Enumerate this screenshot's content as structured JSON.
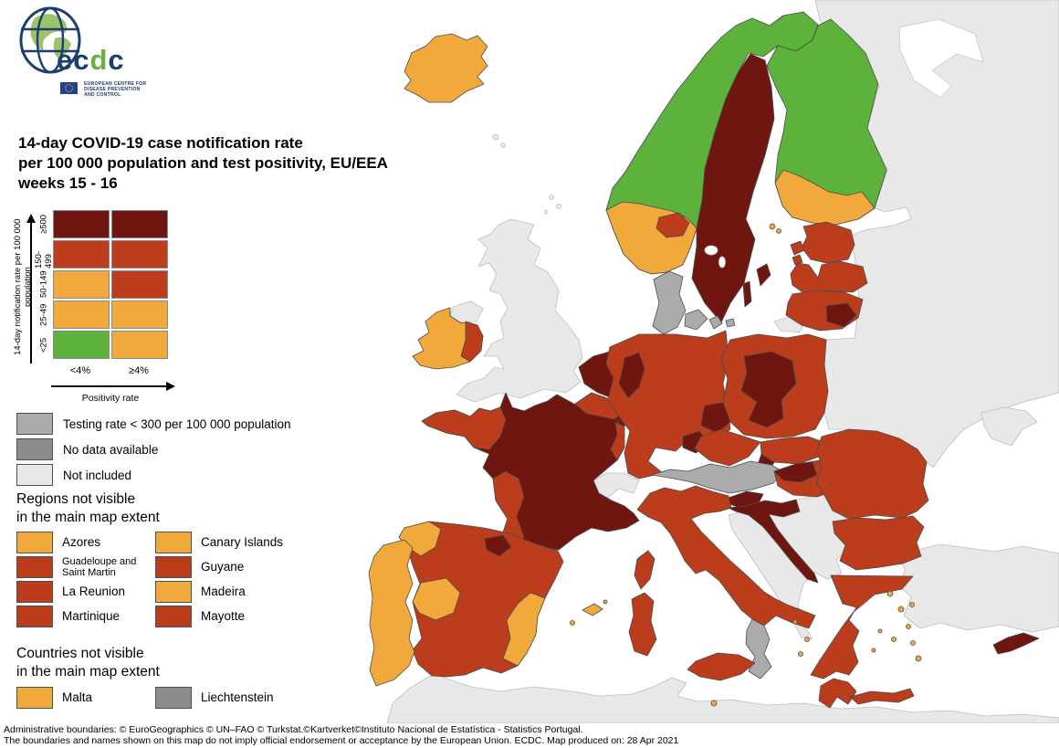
{
  "logo": {
    "wm1": "ec",
    "wm2": "d",
    "wm3": "c",
    "caption_l1": "EUROPEAN CENTRE FOR",
    "caption_l2": "DISEASE PREVENTION",
    "caption_l3": "AND CONTROL"
  },
  "title": {
    "line1": "14-day COVID-19 case notification rate",
    "line2": "per 100 000 population and test positivity, EU/EEA",
    "line3": "weeks 15 - 16"
  },
  "matrix_legend": {
    "y_axis_label": "14-day notification rate per 100 000 population",
    "x_axis_label": "Positivity rate",
    "columns": [
      "<4%",
      "≥4%"
    ],
    "rows": [
      {
        "label": "≥500",
        "cells": [
          "dark_red",
          "dark_red"
        ]
      },
      {
        "label": "150-499",
        "cells": [
          "red",
          "red"
        ]
      },
      {
        "label": "50-149",
        "cells": [
          "orange",
          "red"
        ]
      },
      {
        "label": "25-49",
        "cells": [
          "orange",
          "orange"
        ]
      },
      {
        "label": "<25",
        "cells": [
          "green",
          "orange"
        ]
      }
    ]
  },
  "status_legend": [
    {
      "label": "Testing rate < 300 per 100 000 population",
      "category": "testing_low"
    },
    {
      "label": "No data available",
      "category": "no_data"
    },
    {
      "label": "Not included",
      "category": "not_included"
    }
  ],
  "sections": {
    "regions": {
      "h1": "Regions not visible",
      "h2": "in the main map extent",
      "items": [
        {
          "name": "Azores",
          "category": "orange"
        },
        {
          "name": "Canary Islands",
          "category": "orange"
        },
        {
          "name": "Guadeloupe and Saint Martin",
          "category": "red"
        },
        {
          "name": "Guyane",
          "category": "red"
        },
        {
          "name": "La Reunion",
          "category": "red"
        },
        {
          "name": "Madeira",
          "category": "orange"
        },
        {
          "name": "Martinique",
          "category": "red"
        },
        {
          "name": "Mayotte",
          "category": "red"
        }
      ]
    },
    "countries": {
      "h1": "Countries not visible",
      "h2": "in the main map extent",
      "items": [
        {
          "name": "Malta",
          "category": "orange"
        },
        {
          "name": "Liechtenstein",
          "category": "no_data"
        }
      ]
    }
  },
  "footer": {
    "line1": "Administrative boundaries: © EuroGeographics © UN–FAO © Turkstat.©Kartverket©Instituto Nacional de Estatística - Statistics Portugal.",
    "line2": "The boundaries and names shown on this map do not imply official endorsement or acceptance by the European Union. ECDC. Map produced on: 28 Apr 2021"
  },
  "colors": {
    "green": "#5DB23C",
    "orange": "#F2A93C",
    "red": "#BC3D1B",
    "dark_red": "#701610",
    "testing_low": "#ABABAB",
    "no_data": "#8C8C8C",
    "not_included": "#E8E8E8",
    "sea": "#FFFFFF",
    "navy": "#1C3F72",
    "logo_green": "#69B042"
  },
  "map": {
    "regions": {
      "east_europe": {
        "name": "Russia / Belarus / Ukraine",
        "category": "not_included"
      },
      "crimea": {
        "name": "Crimea",
        "category": "not_included"
      },
      "turkey": {
        "name": "Turkey",
        "category": "not_included"
      },
      "north_africa": {
        "name": "North Africa",
        "category": "not_included"
      },
      "uk": {
        "name": "United Kingdom",
        "category": "not_included"
      },
      "n_ireland": {
        "name": "Northern Ireland",
        "category": "not_included"
      },
      "uk_small_isles": {
        "name": "Shetland / Faroe / Man",
        "category": "not_included"
      },
      "switzerland": {
        "name": "Switzerland",
        "category": "not_included"
      },
      "balkans": {
        "name": "Western Balkans",
        "category": "not_included"
      },
      "kaliningrad": {
        "name": "Kaliningrad",
        "category": "not_included"
      },
      "iceland": {
        "name": "Iceland",
        "category": "orange"
      },
      "norway": {
        "name": "Norway",
        "category": "green"
      },
      "norway_south": {
        "name": "Norway south",
        "category": "orange"
      },
      "norway_oslo": {
        "name": "Norway Oslo region",
        "category": "red"
      },
      "sweden": {
        "name": "Sweden",
        "category": "dark_red"
      },
      "gotland": {
        "name": "Gotland",
        "category": "dark_red"
      },
      "oland": {
        "name": "Öland",
        "category": "dark_red"
      },
      "finland": {
        "name": "Finland",
        "category": "green"
      },
      "finland_south": {
        "name": "Finland south-west",
        "category": "orange"
      },
      "aland": {
        "name": "Åland",
        "category": "orange"
      },
      "estonia": {
        "name": "Estonia",
        "category": "red"
      },
      "estonia_islands": {
        "name": "Estonian islands",
        "category": "red"
      },
      "latvia": {
        "name": "Latvia",
        "category": "red"
      },
      "lithuania": {
        "name": "Lithuania",
        "category": "red"
      },
      "lithuania_se": {
        "name": "Lithuania south-east",
        "category": "dark_red"
      },
      "denmark": {
        "name": "Denmark",
        "category": "testing_low"
      },
      "ireland": {
        "name": "Ireland",
        "category": "orange"
      },
      "ireland_east": {
        "name": "Ireland east",
        "category": "red"
      },
      "netherlands": {
        "name": "Netherlands",
        "category": "dark_red"
      },
      "belgium": {
        "name": "Belgium",
        "category": "red"
      },
      "luxembourg": {
        "name": "Luxembourg",
        "category": "dark_red"
      },
      "germany": {
        "name": "Germany",
        "category": "red"
      },
      "germany_nw": {
        "name": "Germany north-west",
        "category": "dark_red"
      },
      "germany_saxony": {
        "name": "Germany Saxony",
        "category": "dark_red"
      },
      "germany_ne_bav": {
        "name": "Germany NE Bavaria",
        "category": "dark_red"
      },
      "poland": {
        "name": "Poland",
        "category": "red"
      },
      "poland_center": {
        "name": "Poland central",
        "category": "dark_red"
      },
      "czechia": {
        "name": "Czechia",
        "category": "red"
      },
      "slovakia": {
        "name": "Slovakia",
        "category": "red"
      },
      "slovakia_west": {
        "name": "Slovakia west",
        "category": "dark_red"
      },
      "austria": {
        "name": "Austria",
        "category": "testing_low"
      },
      "hungary": {
        "name": "Hungary",
        "category": "red"
      },
      "hungary_nw": {
        "name": "Hungary north-west",
        "category": "dark_red"
      },
      "france": {
        "name": "France",
        "category": "dark_red"
      },
      "france_west": {
        "name": "France west",
        "category": "red"
      },
      "france_southwest": {
        "name": "France south-west",
        "category": "red"
      },
      "france_alsace": {
        "name": "France east border",
        "category": "red"
      },
      "italy": {
        "name": "Italy",
        "category": "red"
      },
      "calabria": {
        "name": "Calabria",
        "category": "testing_low"
      },
      "sicily": {
        "name": "Sicily",
        "category": "red"
      },
      "sardinia": {
        "name": "Sardinia",
        "category": "red"
      },
      "corsica": {
        "name": "Corsica",
        "category": "red"
      },
      "slovenia": {
        "name": "Slovenia",
        "category": "dark_red"
      },
      "croatia": {
        "name": "Croatia",
        "category": "dark_red"
      },
      "romania": {
        "name": "Romania",
        "category": "red"
      },
      "bulgaria": {
        "name": "Bulgaria",
        "category": "red"
      },
      "greece": {
        "name": "Greece",
        "category": "red"
      },
      "peloponnese": {
        "name": "Peloponnese",
        "category": "red"
      },
      "crete": {
        "name": "Crete",
        "category": "red"
      },
      "greek_islands": {
        "name": "Greek islands",
        "category": "orange"
      },
      "cyprus": {
        "name": "Cyprus",
        "category": "dark_red"
      },
      "malta": {
        "name": "Malta",
        "category": "orange"
      },
      "spain": {
        "name": "Spain",
        "category": "red"
      },
      "spain_galicia": {
        "name": "Galicia",
        "category": "orange"
      },
      "spain_extrem": {
        "name": "Extremadura",
        "category": "orange"
      },
      "spain_east": {
        "name": "Valencia / Murcia",
        "category": "orange"
      },
      "spain_basque": {
        "name": "Basque Country",
        "category": "dark_red"
      },
      "balearics": {
        "name": "Balearic Islands",
        "category": "orange"
      },
      "portugal": {
        "name": "Portugal",
        "category": "orange"
      }
    }
  }
}
